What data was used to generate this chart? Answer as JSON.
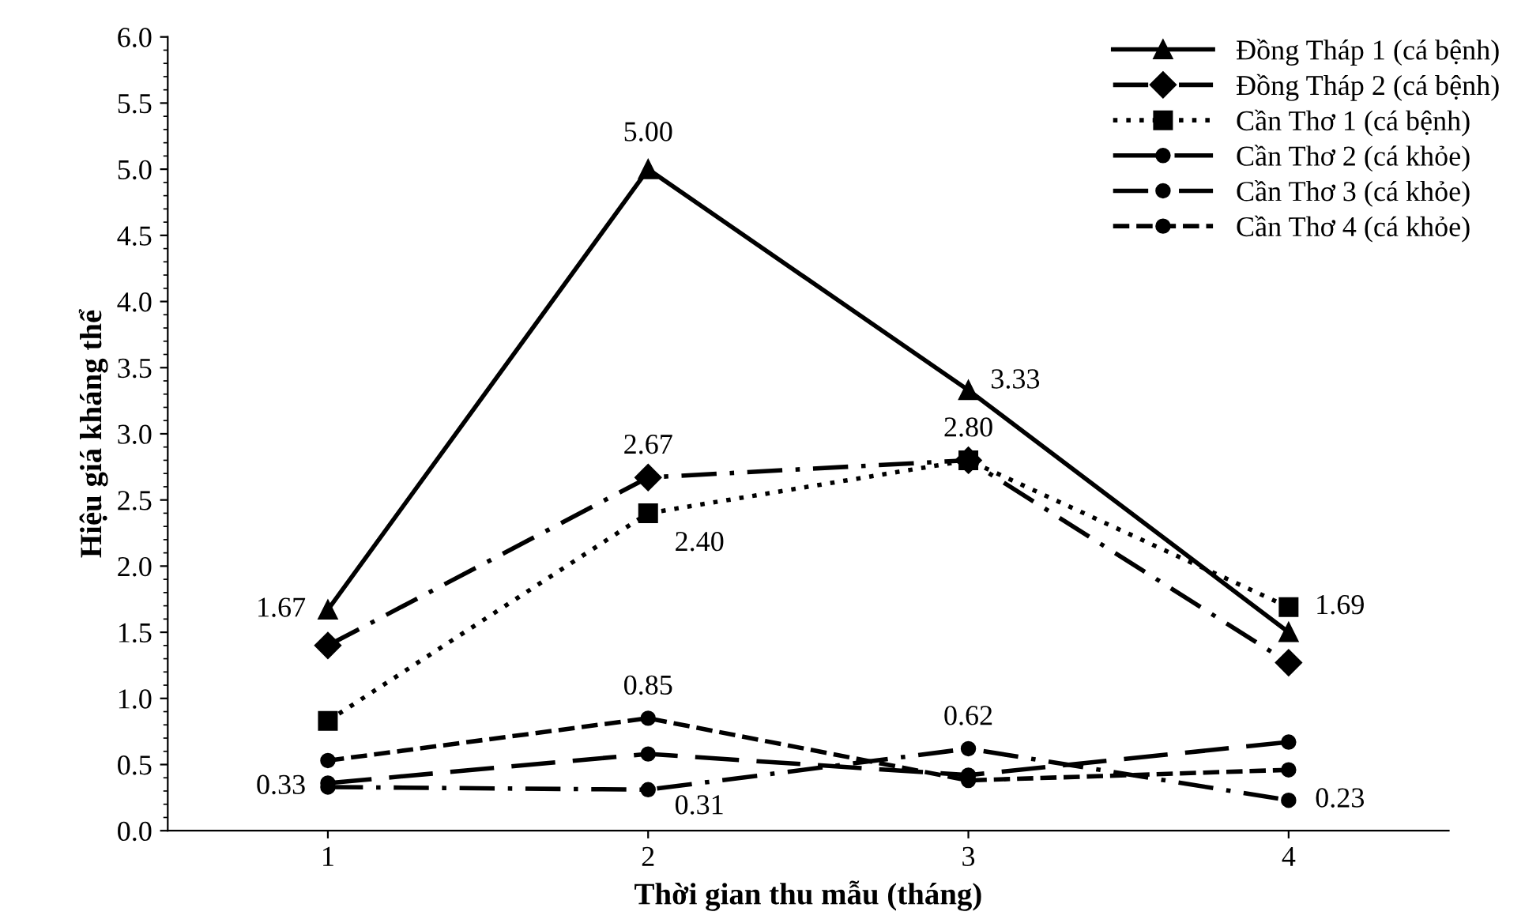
{
  "chart_data": {
    "type": "line",
    "xlabel": "Thời gian thu mẫu (tháng)",
    "ylabel": "Hiệu giá kháng thể",
    "x": [
      1,
      2,
      3,
      4
    ],
    "xlim": [
      0.5,
      4.5
    ],
    "xticks": [
      1,
      2,
      3,
      4
    ],
    "ylim": [
      0,
      6
    ],
    "yticks": [
      {
        "value": 0,
        "label": "0.0"
      },
      {
        "value": 0.5,
        "label": "0.5"
      },
      {
        "value": 1,
        "label": "1.0"
      },
      {
        "value": 1.5,
        "label": "1.5"
      },
      {
        "value": 2,
        "label": "2.0"
      },
      {
        "value": 2.5,
        "label": "2.5"
      },
      {
        "value": 3,
        "label": "3.0"
      },
      {
        "value": 3.5,
        "label": "3.5"
      },
      {
        "value": 4,
        "label": "4.0"
      },
      {
        "value": 4.5,
        "label": "4.5"
      },
      {
        "value": 5,
        "label": "5.0"
      },
      {
        "value": 5.5,
        "label": "5.5"
      },
      {
        "value": 6,
        "label": "6.0"
      }
    ],
    "grid": false,
    "legend": "top right",
    "series": [
      {
        "name": "Đồng Tháp 1 (cá bệnh)",
        "color": "#000000",
        "marker": "triangle",
        "line_style": "solid",
        "values": [
          1.67,
          5.0,
          3.33,
          1.5
        ],
        "value_labels": [
          "1.67",
          "5.00",
          "3.33",
          null
        ]
      },
      {
        "name": "Đồng Tháp 2 (cá bệnh)",
        "color": "#000000",
        "marker": "diamond",
        "line_style": "dashdot",
        "values": [
          1.4,
          2.67,
          2.8,
          1.27
        ],
        "value_labels": [
          null,
          "2.67",
          "2.80",
          null
        ]
      },
      {
        "name": "Cần Thơ 1 (cá bệnh)",
        "color": "#000000",
        "marker": "square",
        "line_style": "dotted",
        "values": [
          0.83,
          2.4,
          2.8,
          1.69
        ],
        "value_labels": [
          null,
          "2.40",
          null,
          "1.69"
        ]
      },
      {
        "name": "Cần Thơ 2 (cá khỏe)",
        "color": "#000000",
        "marker": "circle",
        "line_style": "longdash",
        "values": [
          0.36,
          0.58,
          0.42,
          0.67
        ],
        "value_labels": [
          null,
          null,
          null,
          null
        ]
      },
      {
        "name": "Cần Thơ 3 (cá khỏe)",
        "color": "#000000",
        "marker": "circle",
        "line_style": "dashdot",
        "values": [
          0.33,
          0.31,
          0.62,
          0.23
        ],
        "value_labels": [
          "0.33",
          "0.31",
          "0.62",
          "0.23"
        ]
      },
      {
        "name": "Cần Thơ 4 (cá khỏe)",
        "color": "#000000",
        "marker": "circle",
        "line_style": "dashed",
        "values": [
          0.53,
          0.85,
          0.38,
          0.46
        ],
        "value_labels": [
          null,
          "0.85",
          null,
          null
        ]
      }
    ]
  }
}
